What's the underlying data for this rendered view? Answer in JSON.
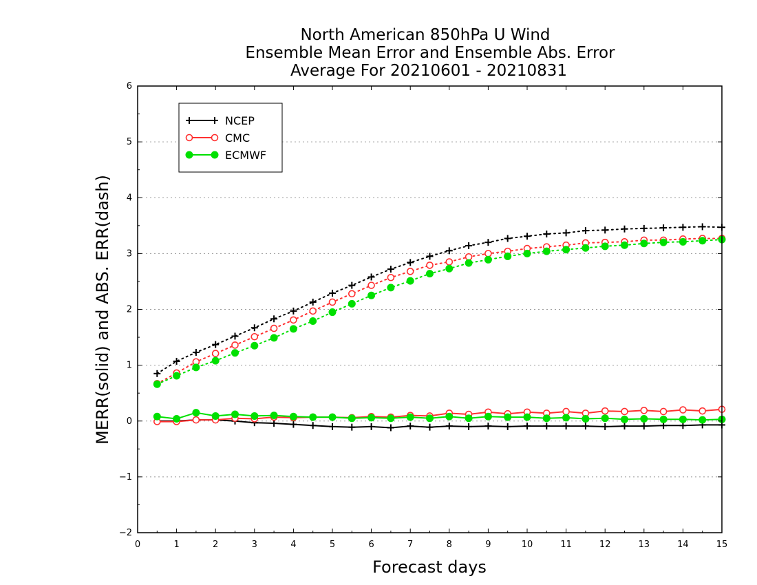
{
  "chart_data": {
    "type": "line",
    "title": [
      "North American 850hPa U Wind",
      "Ensemble Mean Error and Ensemble Abs. Error",
      "Average For 20210601 - 20210831"
    ],
    "xlabel": "Forecast days",
    "ylabel": "MERR(solid) and ABS. ERR(dash)",
    "xlim": [
      0,
      15
    ],
    "ylim": [
      -2,
      6
    ],
    "x_ticks": [
      0,
      1,
      2,
      3,
      4,
      5,
      6,
      7,
      8,
      9,
      10,
      11,
      12,
      13,
      14,
      15
    ],
    "x_tick_labels": [
      "0",
      "1",
      "2",
      "3",
      "4",
      "5",
      "6",
      "7",
      "8",
      "9",
      "10",
      "11",
      "12",
      "13",
      "14",
      "15"
    ],
    "y_ticks": [
      -2,
      -1,
      0,
      1,
      2,
      3,
      4,
      5,
      6
    ],
    "y_tick_labels": [
      "−2",
      "−1",
      "0",
      "1",
      "2",
      "3",
      "4",
      "5",
      "6"
    ],
    "grid": "horizontal dotted",
    "legend_position": "top-left",
    "x": [
      0.5,
      1,
      1.5,
      2,
      2.5,
      3,
      3.5,
      4,
      4.5,
      5,
      5.5,
      6,
      6.5,
      7,
      7.5,
      8,
      8.5,
      9,
      9.5,
      10,
      10.5,
      11,
      11.5,
      12,
      12.5,
      13,
      13.5,
      14,
      14.5,
      15
    ],
    "series": [
      {
        "name": "NCEP",
        "color": "#000000",
        "marker": "plus",
        "merr": [
          0.0,
          0.0,
          0.02,
          0.02,
          0.0,
          -0.03,
          -0.04,
          -0.06,
          -0.08,
          -0.1,
          -0.11,
          -0.1,
          -0.12,
          -0.09,
          -0.11,
          -0.09,
          -0.1,
          -0.09,
          -0.1,
          -0.09,
          -0.09,
          -0.09,
          -0.09,
          -0.1,
          -0.09,
          -0.09,
          -0.08,
          -0.08,
          -0.07,
          -0.07
        ],
        "abs_err": [
          0.85,
          1.07,
          1.23,
          1.37,
          1.52,
          1.67,
          1.83,
          1.97,
          2.13,
          2.29,
          2.43,
          2.58,
          2.72,
          2.84,
          2.95,
          3.05,
          3.14,
          3.2,
          3.27,
          3.31,
          3.35,
          3.37,
          3.41,
          3.42,
          3.44,
          3.45,
          3.46,
          3.47,
          3.48,
          3.47
        ]
      },
      {
        "name": "CMC",
        "color": "#ff3030",
        "marker": "open-circle",
        "merr": [
          -0.01,
          -0.01,
          0.02,
          0.02,
          0.05,
          0.04,
          0.07,
          0.06,
          0.07,
          0.07,
          0.06,
          0.08,
          0.07,
          0.1,
          0.09,
          0.14,
          0.12,
          0.16,
          0.13,
          0.16,
          0.14,
          0.17,
          0.14,
          0.18,
          0.17,
          0.19,
          0.17,
          0.2,
          0.18,
          0.21
        ],
        "abs_err": [
          0.67,
          0.86,
          1.06,
          1.21,
          1.36,
          1.51,
          1.66,
          1.81,
          1.97,
          2.13,
          2.28,
          2.43,
          2.57,
          2.68,
          2.79,
          2.85,
          2.94,
          3.0,
          3.04,
          3.09,
          3.12,
          3.15,
          3.19,
          3.2,
          3.21,
          3.24,
          3.24,
          3.26,
          3.27,
          3.27
        ]
      },
      {
        "name": "ECMWF",
        "color": "#00e000",
        "marker": "filled-circle",
        "merr": [
          0.08,
          0.04,
          0.15,
          0.09,
          0.12,
          0.09,
          0.1,
          0.08,
          0.07,
          0.07,
          0.05,
          0.06,
          0.05,
          0.07,
          0.05,
          0.08,
          0.05,
          0.08,
          0.07,
          0.07,
          0.05,
          0.06,
          0.04,
          0.05,
          0.03,
          0.04,
          0.03,
          0.03,
          0.02,
          0.03
        ],
        "abs_err": [
          0.66,
          0.81,
          0.96,
          1.08,
          1.22,
          1.35,
          1.49,
          1.65,
          1.79,
          1.95,
          2.1,
          2.25,
          2.39,
          2.51,
          2.64,
          2.73,
          2.83,
          2.89,
          2.95,
          3.0,
          3.04,
          3.07,
          3.1,
          3.13,
          3.15,
          3.18,
          3.2,
          3.21,
          3.23,
          3.25
        ]
      }
    ]
  }
}
